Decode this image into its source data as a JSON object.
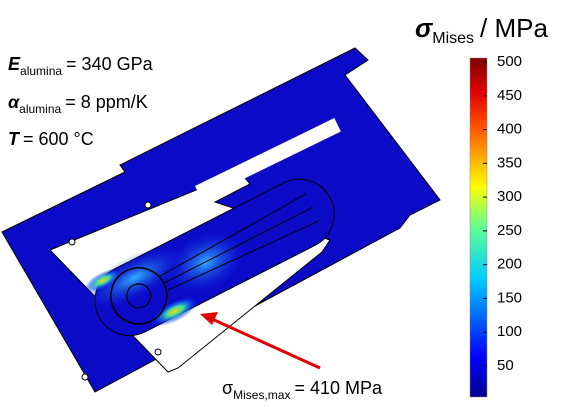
{
  "title": {
    "symbol": "σ",
    "subscript": "Mises",
    "unit": "/ MPa"
  },
  "annotations": [
    {
      "symbol": "E",
      "subscript": "alumina",
      "text": "= 340 GPa"
    },
    {
      "symbol": "α",
      "subscript": "alumina",
      "text": "= 8 ppm/K"
    },
    {
      "symbol": "T",
      "text": "= 600 °C"
    }
  ],
  "colorbar": {
    "range": [
      4,
      506
    ],
    "ticks": [
      50,
      100,
      150,
      200,
      250,
      300,
      350,
      400,
      450,
      500
    ]
  },
  "callout": {
    "symbol": "σ",
    "subscript": "Mises,max",
    "text": "= 410 MPa"
  }
}
